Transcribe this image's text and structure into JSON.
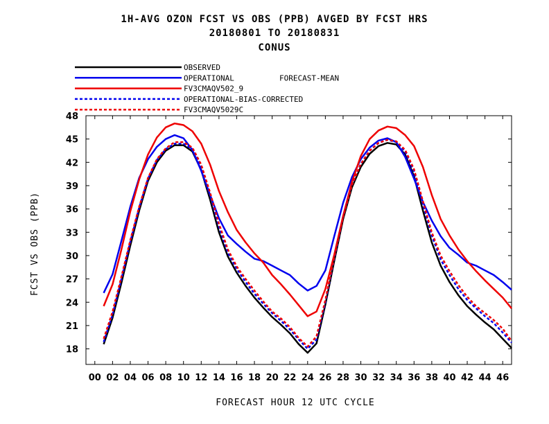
{
  "header": {
    "title_line1": "1H-AVG OZON FCST VS OBS (PPB)  AVGED BY FCST HRS",
    "title_line2": "20180801 TO 20180831",
    "title_line3": "CONUS"
  },
  "chart_data": {
    "type": "line",
    "title": "1H-AVG OZON FCST VS OBS (PPB)  AVGED BY FCST HRS",
    "subtitle": "20180801 TO 20180831",
    "region": "CONUS",
    "xlabel": "FORECAST HOUR  12 UTC CYCLE",
    "ylabel": "FCST VS OBS (PPB)",
    "xlim": [
      -1,
      47
    ],
    "ylim": [
      16,
      48
    ],
    "xticks": [
      "00",
      "02",
      "04",
      "06",
      "08",
      "10",
      "12",
      "14",
      "16",
      "18",
      "20",
      "22",
      "24",
      "26",
      "28",
      "30",
      "32",
      "34",
      "36",
      "38",
      "40",
      "42",
      "44",
      "46"
    ],
    "yticks": [
      "18",
      "21",
      "24",
      "27",
      "30",
      "33",
      "36",
      "39",
      "42",
      "45",
      "48"
    ],
    "legend_position": "top-left",
    "x": [
      1,
      2,
      3,
      4,
      5,
      6,
      7,
      8,
      9,
      10,
      11,
      12,
      13,
      14,
      15,
      16,
      17,
      18,
      19,
      20,
      21,
      22,
      23,
      24,
      25,
      26,
      27,
      28,
      29,
      30,
      31,
      32,
      33,
      34,
      35,
      36,
      37,
      38,
      39,
      40,
      41,
      42,
      43,
      44,
      45,
      46,
      47
    ],
    "series": [
      {
        "name": "OBSERVED",
        "legend_label": "OBSERVED",
        "color": "#000000",
        "dash": "solid",
        "values": [
          18.6,
          22.0,
          26.5,
          31.3,
          35.8,
          39.6,
          42.0,
          43.5,
          44.2,
          44.2,
          43.4,
          41.0,
          37.2,
          33.0,
          29.9,
          27.8,
          26.1,
          24.6,
          23.3,
          22.1,
          21.1,
          20.0,
          18.6,
          17.5,
          18.7,
          23.7,
          29.3,
          34.7,
          38.8,
          41.4,
          43.1,
          44.1,
          44.5,
          44.3,
          43.0,
          40.2,
          35.8,
          31.7,
          28.7,
          26.6,
          24.9,
          23.5,
          22.4,
          21.4,
          20.5,
          19.3,
          18.1
        ]
      },
      {
        "name": "OPERATIONAL FORECAST-MEAN",
        "legend_label": "OPERATIONAL",
        "legend_suffix": "FORECAST-MEAN",
        "color": "#0000ee",
        "dash": "solid",
        "values": [
          25.2,
          27.6,
          31.9,
          36.3,
          40.0,
          42.4,
          44.0,
          45.0,
          45.5,
          45.1,
          43.6,
          40.9,
          37.8,
          34.8,
          32.6,
          31.5,
          30.5,
          29.6,
          29.3,
          28.7,
          28.1,
          27.5,
          26.4,
          25.5,
          26.1,
          28.1,
          32.5,
          36.8,
          40.1,
          42.4,
          43.9,
          44.8,
          45.1,
          44.6,
          42.7,
          39.9,
          36.9,
          34.5,
          32.5,
          31.0,
          30.1,
          29.1,
          28.7,
          28.1,
          27.5,
          26.6,
          25.6
        ]
      },
      {
        "name": "FV3CMAQV502_9",
        "legend_label": "FV3CMAQV502_9",
        "color": "#ee0000",
        "dash": "solid",
        "values": [
          23.5,
          26.3,
          30.8,
          35.7,
          39.8,
          43.0,
          45.2,
          46.5,
          47.0,
          46.8,
          46.0,
          44.4,
          41.7,
          38.3,
          35.6,
          33.3,
          31.7,
          30.3,
          29.1,
          27.5,
          26.3,
          25.0,
          23.6,
          22.2,
          22.8,
          25.7,
          30.1,
          35.1,
          39.5,
          42.8,
          45.0,
          46.1,
          46.6,
          46.4,
          45.5,
          44.1,
          41.4,
          37.8,
          34.7,
          32.6,
          30.8,
          29.3,
          28.0,
          26.8,
          25.7,
          24.6,
          23.2
        ]
      },
      {
        "name": "OPERATIONAL-BIAS-CORRECTED",
        "legend_label": "OPERATIONAL-BIAS-CORRECTED",
        "color": "#0000ee",
        "dash": "dashed",
        "values": [
          18.9,
          22.4,
          27.0,
          31.8,
          36.2,
          39.9,
          42.3,
          43.7,
          44.4,
          44.4,
          43.7,
          41.5,
          37.8,
          33.7,
          30.4,
          28.3,
          26.6,
          25.1,
          23.8,
          22.6,
          21.6,
          20.5,
          19.2,
          18.0,
          19.2,
          24.0,
          29.6,
          35.0,
          39.1,
          41.8,
          43.5,
          44.5,
          44.9,
          44.6,
          43.4,
          40.8,
          36.6,
          32.6,
          29.5,
          27.5,
          25.7,
          24.3,
          23.2,
          22.2,
          21.3,
          20.1,
          18.8
        ]
      },
      {
        "name": "FV3CMAQV5029C",
        "legend_label": "FV3CMAQV5029C",
        "color": "#ee0000",
        "dash": "dashed",
        "values": [
          19.3,
          22.8,
          27.3,
          32.0,
          36.3,
          40.0,
          42.4,
          43.8,
          44.6,
          44.6,
          43.9,
          41.7,
          38.1,
          34.1,
          30.8,
          28.6,
          27.0,
          25.5,
          24.1,
          22.8,
          21.9,
          20.8,
          19.4,
          18.3,
          19.6,
          24.3,
          29.8,
          35.0,
          39.1,
          41.8,
          43.5,
          44.5,
          44.9,
          44.7,
          43.6,
          41.1,
          37.0,
          33.0,
          30.0,
          28.0,
          26.2,
          24.7,
          23.5,
          22.6,
          21.7,
          20.6,
          19.0
        ]
      }
    ]
  }
}
